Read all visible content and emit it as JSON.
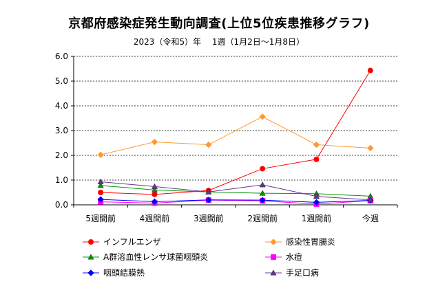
{
  "chart_data": {
    "type": "line",
    "title": "京都府感染症発生動向調査(上位5位疾患推移グラフ)",
    "subtitle": "2023（令和5）年　 1週（1月2日〜1月8日）",
    "categories": [
      "5週間前",
      "4週間前",
      "3週間前",
      "2週間前",
      "1週間前",
      "今週"
    ],
    "ylim": [
      0,
      6
    ],
    "yticks": [
      "0.0",
      "1.0",
      "2.0",
      "3.0",
      "4.0",
      "5.0",
      "6.0"
    ],
    "grid": true,
    "legend_position": "bottom",
    "series": [
      {
        "name": "インフルエンザ",
        "color": "#ff0000",
        "marker": "circle",
        "values": [
          0.5,
          0.42,
          0.58,
          1.46,
          1.84,
          5.43
        ]
      },
      {
        "name": "感染性胃腸炎",
        "color": "#ff9933",
        "marker": "diamond",
        "values": [
          2.02,
          2.54,
          2.43,
          3.56,
          2.43,
          2.29
        ]
      },
      {
        "name": "A群溶血性レンサ球菌咽頭炎",
        "color": "#009900",
        "marker": "triangle",
        "values": [
          0.78,
          0.6,
          0.52,
          0.47,
          0.45,
          0.35
        ]
      },
      {
        "name": "水痘",
        "color": "#ff00ff",
        "marker": "square",
        "values": [
          0.12,
          0.07,
          0.19,
          0.16,
          0.03,
          0.17
        ]
      },
      {
        "name": "咽頭結膜熱",
        "color": "#0000ff",
        "marker": "diamond",
        "values": [
          0.22,
          0.13,
          0.2,
          0.19,
          0.1,
          0.18
        ]
      },
      {
        "name": "手足口病",
        "color": "#663399",
        "marker": "triangle",
        "values": [
          0.93,
          0.74,
          0.52,
          0.81,
          0.34,
          0.2
        ]
      }
    ]
  }
}
